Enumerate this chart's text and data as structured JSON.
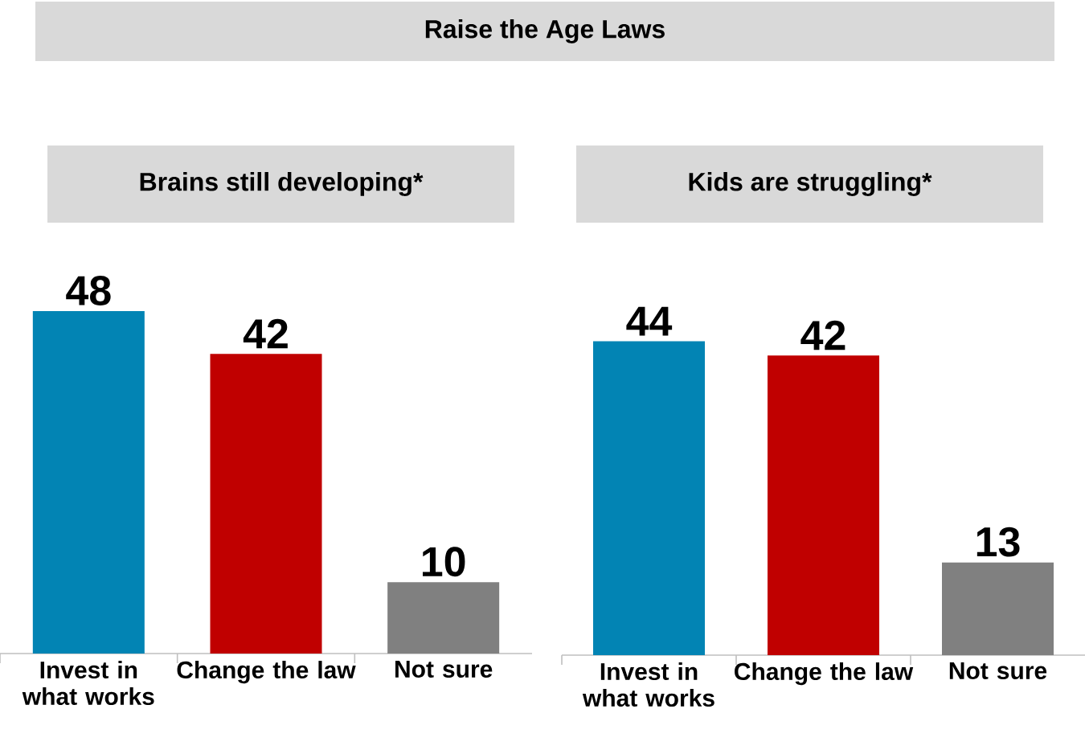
{
  "chart_data": [
    {
      "type": "bar",
      "title": "Raise the Age Laws",
      "subtitle": "Brains still developing*",
      "categories": [
        "Invest in what works",
        "Change the law",
        "Not sure"
      ],
      "values": [
        48,
        42,
        10
      ],
      "colors": [
        "#0284b4",
        "#c00000",
        "#808080"
      ],
      "data_labels": true
    },
    {
      "type": "bar",
      "title": "Kids are struggling*",
      "categories": [
        "Invest in what works",
        "Change the law",
        "Not sure"
      ],
      "values": [
        44,
        42,
        13
      ],
      "colors": [
        "#0284b4",
        "#c00000",
        "#808080"
      ],
      "data_labels": true
    }
  ]
}
